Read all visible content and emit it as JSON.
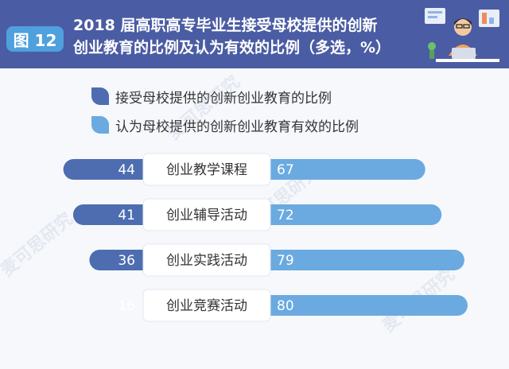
{
  "header": {
    "badge": "图 12",
    "title_line1": "2018 届高职高专毕业生接受母校提供的创新",
    "title_line2": "创业教育的比例及认为有效的比例（多选，%）"
  },
  "watermark": "麦可思研究",
  "colors": {
    "header_bg": "#4a5ca3",
    "badge": "#4fa0dc",
    "dark_series": "#4e6db0",
    "light_series": "#6aaae0"
  },
  "chart_data": {
    "type": "bar",
    "title": "2018 届高职高专毕业生接受母校提供的创新创业教育的比例及认为有效的比例（多选，%）",
    "categories": [
      "创业教学课程",
      "创业辅导活动",
      "创业实践活动",
      "创业竞赛活动"
    ],
    "series": [
      {
        "name": "接受母校提供的创新创业教育的比例",
        "values": [
          44,
          41,
          36,
          16
        ]
      },
      {
        "name": "认为母校提供的创新创业教育有效的比例",
        "values": [
          67,
          72,
          79,
          80
        ]
      }
    ],
    "legend": "top"
  }
}
